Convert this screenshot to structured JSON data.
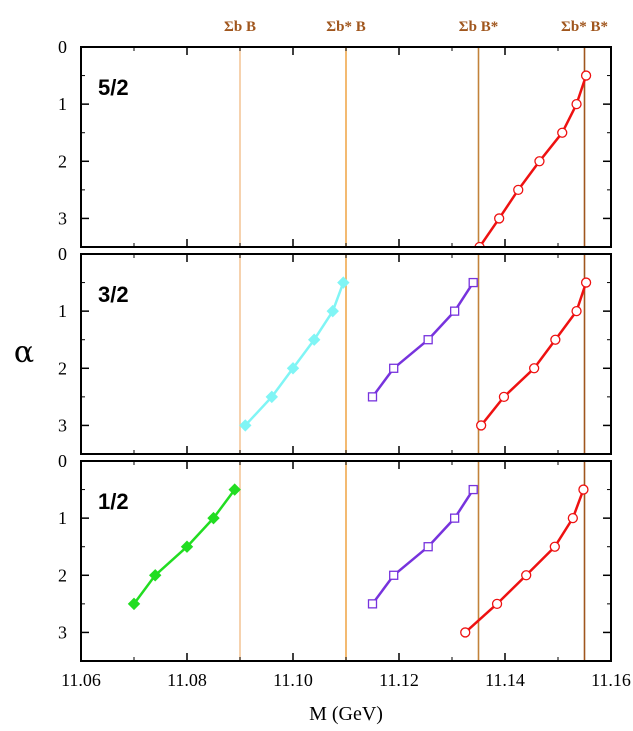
{
  "chart_data": {
    "type": "line",
    "xlabel": "M (GeV)",
    "ylabel": "α",
    "xlim": [
      11.06,
      11.16
    ],
    "xticks": [
      "11.06",
      "11.08",
      "11.10",
      "11.12",
      "11.14",
      "11.16"
    ],
    "ylim": [
      0,
      3.5
    ],
    "yticks": [
      "0",
      "1",
      "2",
      "3"
    ],
    "y_inverted": true,
    "grid": false,
    "thresholds": [
      {
        "label": "Σb B",
        "x": 11.09,
        "color": "#f3c79a"
      },
      {
        "label": "Σb* B",
        "x": 11.11,
        "color": "#f0a84e"
      },
      {
        "label": "Σb B*",
        "x": 11.135,
        "color": "#c2823a"
      },
      {
        "label": "Σb* B*",
        "x": 11.155,
        "color": "#a0561d"
      }
    ],
    "panels": [
      {
        "label": "5/2",
        "series": [
          {
            "color": "#ee1111",
            "marker": "circle-open",
            "points": [
              [
                11.1553,
                0.5
              ],
              [
                11.1535,
                1.0
              ],
              [
                11.1508,
                1.5
              ],
              [
                11.1465,
                2.0
              ],
              [
                11.1425,
                2.5
              ],
              [
                11.1389,
                3.0
              ],
              [
                11.1352,
                3.5
              ]
            ]
          }
        ]
      },
      {
        "label": "3/2",
        "series": [
          {
            "color": "#80f5f5",
            "marker": "diamond-filled",
            "points": [
              [
                11.1095,
                0.5
              ],
              [
                11.1075,
                1.0
              ],
              [
                11.104,
                1.5
              ],
              [
                11.1,
                2.0
              ],
              [
                11.096,
                2.5
              ],
              [
                11.091,
                3.0
              ]
            ]
          },
          {
            "color": "#7733dd",
            "marker": "square-open",
            "points": [
              [
                11.134,
                0.5
              ],
              [
                11.1305,
                1.0
              ],
              [
                11.1255,
                1.5
              ],
              [
                11.119,
                2.0
              ],
              [
                11.115,
                2.5
              ]
            ]
          },
          {
            "color": "#ee1111",
            "marker": "circle-open",
            "points": [
              [
                11.1553,
                0.5
              ],
              [
                11.1535,
                1.0
              ],
              [
                11.1495,
                1.5
              ],
              [
                11.1455,
                2.0
              ],
              [
                11.1398,
                2.5
              ],
              [
                11.1355,
                3.0
              ]
            ]
          }
        ]
      },
      {
        "label": "1/2",
        "series": [
          {
            "color": "#22dd22",
            "marker": "diamond-filled",
            "points": [
              [
                11.089,
                0.5
              ],
              [
                11.085,
                1.0
              ],
              [
                11.08,
                1.5
              ],
              [
                11.074,
                2.0
              ],
              [
                11.07,
                2.5
              ]
            ]
          },
          {
            "color": "#7733dd",
            "marker": "square-open",
            "points": [
              [
                11.134,
                0.5
              ],
              [
                11.1305,
                1.0
              ],
              [
                11.1255,
                1.5
              ],
              [
                11.119,
                2.0
              ],
              [
                11.115,
                2.5
              ]
            ]
          },
          {
            "color": "#ee1111",
            "marker": "circle-open",
            "points": [
              [
                11.1548,
                0.5
              ],
              [
                11.1528,
                1.0
              ],
              [
                11.1494,
                1.5
              ],
              [
                11.144,
                2.0
              ],
              [
                11.1385,
                2.5
              ],
              [
                11.1325,
                3.0
              ]
            ]
          }
        ]
      }
    ]
  }
}
